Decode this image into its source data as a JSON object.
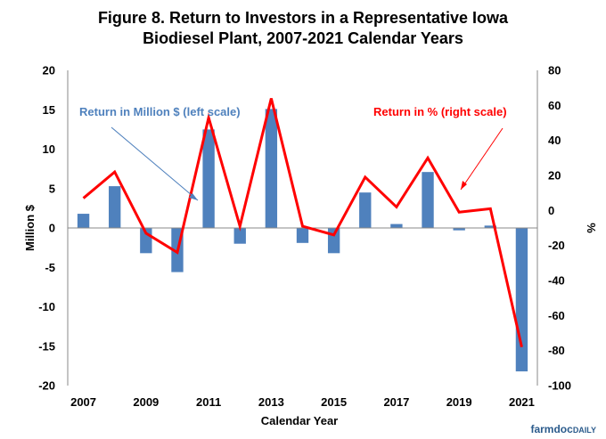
{
  "chart_data": {
    "type": "bar+line",
    "title_lines": [
      "Figure 8. Return to Investors in a Representative Iowa",
      "Biodiesel Plant, 2007-2021 Calendar Years"
    ],
    "xlabel": "Calendar Year",
    "ylabel_left": "Million $",
    "ylabel_right": "%",
    "ylim_left": [
      -20,
      20
    ],
    "ylim_right": [
      -100,
      80
    ],
    "yticks_left": [
      -20,
      -15,
      -10,
      -5,
      0,
      5,
      10,
      15,
      20
    ],
    "yticks_right": [
      -100,
      -80,
      -60,
      -40,
      -20,
      0,
      20,
      40,
      60,
      80
    ],
    "x": [
      2007,
      2008,
      2009,
      2010,
      2011,
      2012,
      2013,
      2014,
      2015,
      2016,
      2017,
      2018,
      2019,
      2020,
      2021
    ],
    "xtick_labels": [
      "2007",
      "2009",
      "2011",
      "2013",
      "2015",
      "2017",
      "2019",
      "2021"
    ],
    "series": [
      {
        "name": "Return in Million $ (left scale)",
        "kind": "bar",
        "axis": "left",
        "color": "#4f81bd",
        "values": [
          1.8,
          5.3,
          -3.2,
          -5.6,
          12.5,
          -2.0,
          15.1,
          -1.9,
          -3.2,
          4.5,
          0.5,
          7.1,
          -0.3,
          0.3,
          -18.2
        ]
      },
      {
        "name": "Return in % (right scale)",
        "kind": "line",
        "axis": "right",
        "color": "#ff0000",
        "values": [
          7,
          22,
          -13,
          -24,
          53,
          -9,
          64,
          -9,
          -14,
          19,
          2,
          30,
          -1,
          1,
          -78
        ]
      }
    ],
    "annotations": [
      {
        "text": "Return in Million $ (left scale)",
        "color": "#4f81bd"
      },
      {
        "text": "Return in % (right scale)",
        "color": "#ff0000"
      }
    ]
  },
  "branding": {
    "logo_primary": "farmdoc",
    "logo_secondary": "DAILY"
  }
}
